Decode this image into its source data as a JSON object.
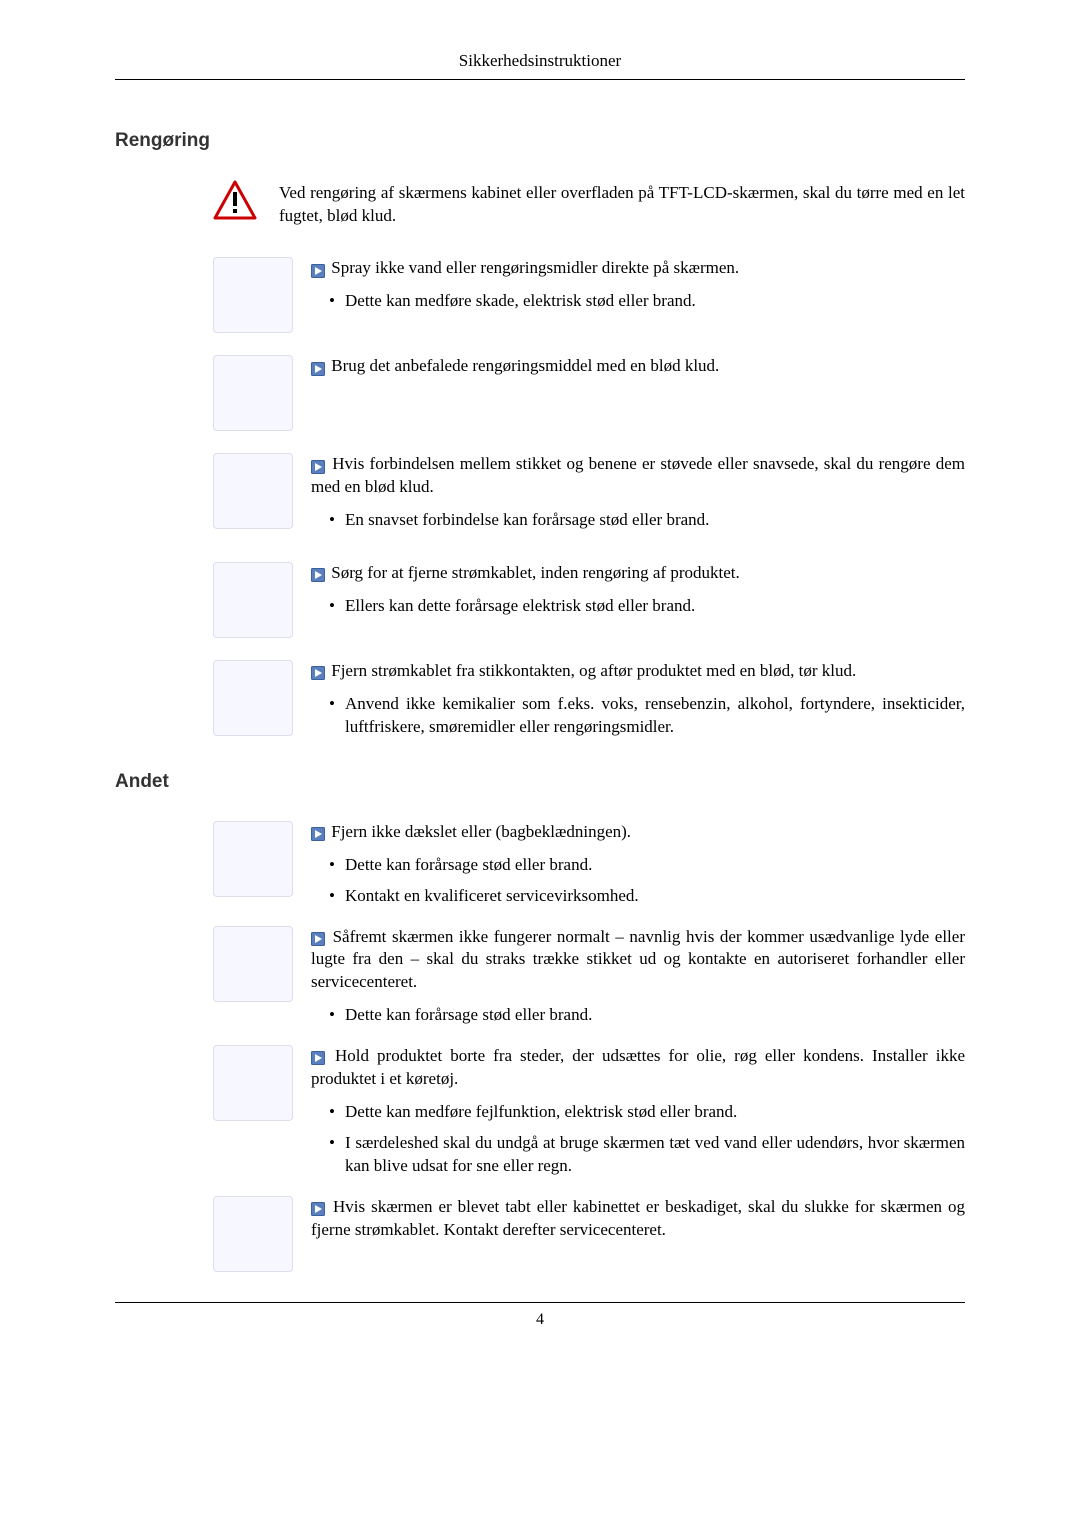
{
  "header": {
    "title": "Sikkerhedsinstruktioner"
  },
  "section1": {
    "heading": "Rengøring",
    "intro": "Ved rengøring af skærmens kabinet eller overfladen på TFT-LCD-skærmen, skal du tørre med en let fugtet, blød klud.",
    "items": [
      {
        "lead": "Spray ikke vand eller rengøringsmidler direkte på skærmen.",
        "subs": [
          "Dette kan medføre skade, elektrisk stød eller brand."
        ]
      },
      {
        "lead": "Brug det anbefalede rengøringsmiddel med en blød klud.",
        "subs": []
      },
      {
        "lead": "Hvis forbindelsen mellem stikket og benene er støvede eller snavsede, skal du rengøre dem med en blød klud.",
        "subs": [
          "En snavset forbindelse kan forårsage stød eller brand."
        ]
      },
      {
        "lead": "Sørg for at fjerne strømkablet, inden rengøring af produktet.",
        "subs": [
          "Ellers kan dette forårsage elektrisk stød eller brand."
        ]
      },
      {
        "lead": "Fjern strømkablet fra stikkontakten, og aftør produktet med en blød, tør klud.",
        "subs": [
          "Anvend ikke kemikalier som f.eks. voks, rensebenzin, alkohol, fortyndere, insekticider, luftfriskere, smøremidler eller rengøringsmidler."
        ]
      }
    ]
  },
  "section2": {
    "heading": "Andet",
    "items": [
      {
        "lead": "Fjern ikke dækslet eller (bagbeklædningen).",
        "subs": [
          "Dette kan forårsage stød eller brand.",
          "Kontakt en kvalificeret servicevirksomhed."
        ]
      },
      {
        "lead": "Såfremt skærmen ikke fungerer normalt – navnlig hvis der kommer usædvanlige lyde eller lugte fra den – skal du straks trække stikket ud og kontakte en autoriseret forhandler eller servicecenteret.",
        "subs": [
          "Dette kan forårsage stød eller brand."
        ]
      },
      {
        "lead": "Hold produktet borte fra steder, der udsættes for olie, røg eller kondens. Installer ikke produktet i et køretøj.",
        "subs": [
          "Dette kan medføre fejlfunktion, elektrisk stød eller brand.",
          "I særdeleshed skal du undgå at bruge skærmen tæt ved vand eller udendørs, hvor skærmen kan blive udsat for sne eller regn."
        ]
      },
      {
        "lead": "Hvis skærmen er blevet tabt eller kabinettet er beskadiget, skal du slukke for skærmen og fjerne strømkablet. Kontakt derefter servicecenteret.",
        "subs": []
      }
    ]
  },
  "footer": {
    "page_number": "4"
  },
  "style": {
    "arrow_fill": "#5a7fbf",
    "arrow_border": "#3a5f9f",
    "arrow_inner": "#ffffff",
    "warn_border": "#cc0000",
    "warn_bang": "#000000"
  }
}
